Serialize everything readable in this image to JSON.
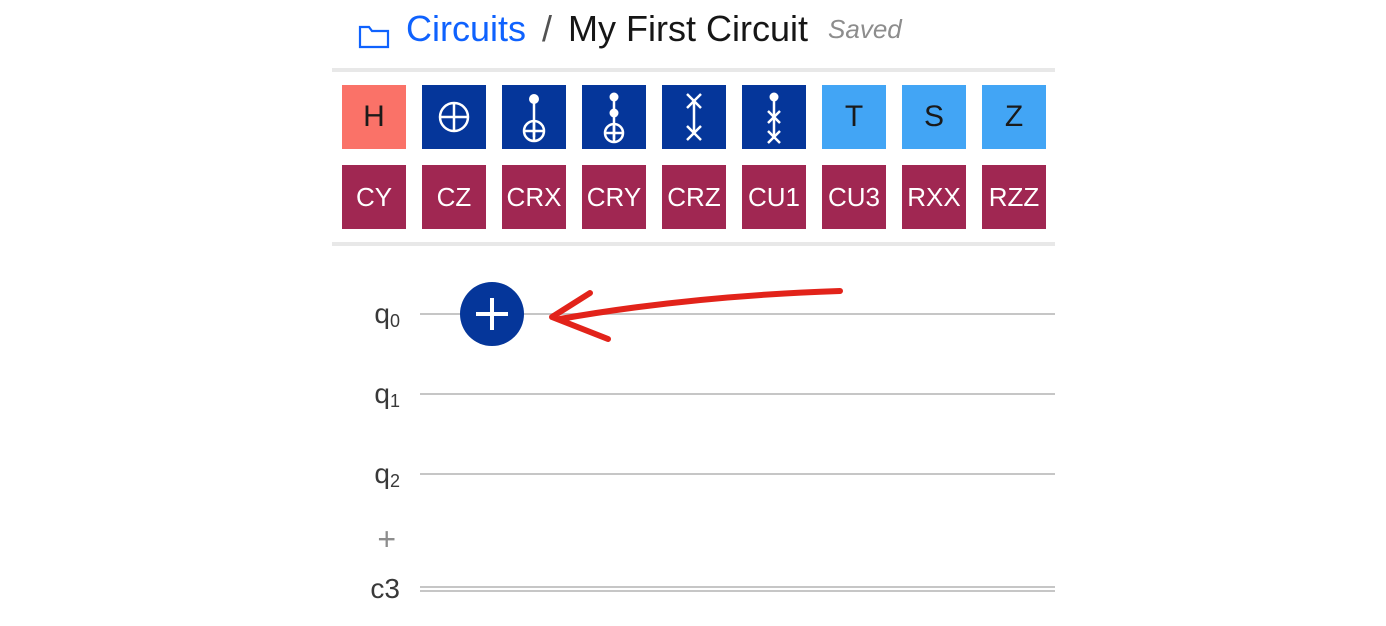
{
  "breadcrumb": {
    "folder_label": "Circuits",
    "separator": "/",
    "current": "My First Circuit",
    "status": "Saved"
  },
  "colors": {
    "link": "#0f62fe",
    "gate_h_bg": "#fa7268",
    "gate_blue_bg": "#05369a",
    "gate_lightblue_bg": "#42a5f5",
    "gate_maroon_bg": "#a02752",
    "wire": "#c6c6c6",
    "divider": "#e8e8e8",
    "text": "#161616",
    "muted": "#8d8d8d",
    "arrow": "#e2231a"
  },
  "gates_row1": [
    {
      "label": "H",
      "type": "text",
      "class": "gate-h",
      "name": "gate-h"
    },
    {
      "label": "",
      "type": "not",
      "class": "gate-blue",
      "name": "gate-not"
    },
    {
      "label": "",
      "type": "cnot",
      "class": "gate-blue",
      "name": "gate-cnot"
    },
    {
      "label": "",
      "type": "ccnot",
      "class": "gate-blue",
      "name": "gate-toffoli"
    },
    {
      "label": "",
      "type": "swap",
      "class": "gate-blue",
      "name": "gate-swap"
    },
    {
      "label": "",
      "type": "cswap",
      "class": "gate-blue",
      "name": "gate-cswap"
    },
    {
      "label": "T",
      "type": "text",
      "class": "gate-lightblue",
      "name": "gate-t"
    },
    {
      "label": "S",
      "type": "text",
      "class": "gate-lightblue",
      "name": "gate-s"
    },
    {
      "label": "Z",
      "type": "text",
      "class": "gate-lightblue",
      "name": "gate-z"
    }
  ],
  "gates_row2": [
    {
      "label": "CY",
      "name": "gate-cy"
    },
    {
      "label": "CZ",
      "name": "gate-cz"
    },
    {
      "label": "CRX",
      "name": "gate-crx"
    },
    {
      "label": "CRY",
      "name": "gate-cry"
    },
    {
      "label": "CRZ",
      "name": "gate-crz"
    },
    {
      "label": "CU1",
      "name": "gate-cu1"
    },
    {
      "label": "CU3",
      "name": "gate-cu3"
    },
    {
      "label": "RXX",
      "name": "gate-rxx"
    },
    {
      "label": "RZZ",
      "name": "gate-rzz"
    }
  ],
  "qubits": [
    {
      "prefix": "q",
      "index": "0",
      "has_gate": true
    },
    {
      "prefix": "q",
      "index": "1",
      "has_gate": false
    },
    {
      "prefix": "q",
      "index": "2",
      "has_gate": false
    }
  ],
  "classical": {
    "prefix": "c",
    "count": "3"
  },
  "add_qubit_symbol": "+"
}
